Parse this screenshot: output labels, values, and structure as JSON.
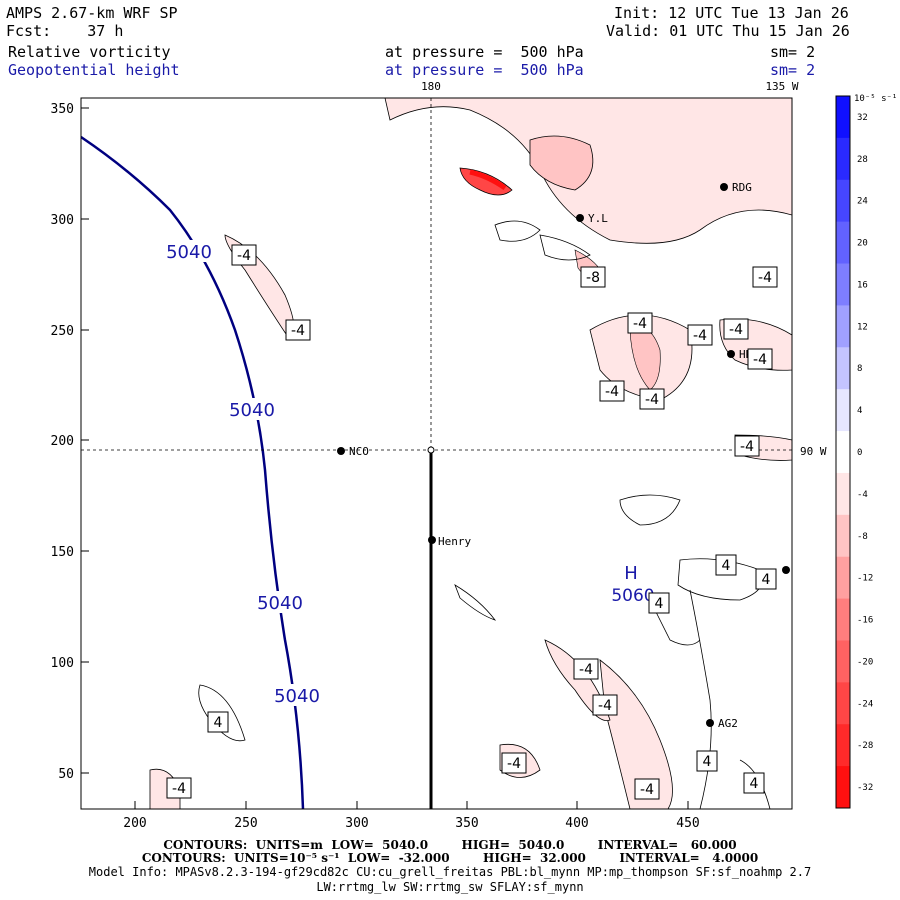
{
  "header": {
    "model_title": "AMPS 2.67-km WRF SP",
    "forecast": "Fcst:    37 h",
    "init": "Init: 12 UTC Tue 13 Jan 26",
    "valid": "Valid: 01 UTC Thu 15 Jan 26",
    "field1_name": "Relative vorticity",
    "field1_level": "at pressure =  500 hPa",
    "field1_sm": "sm= 2",
    "field2_name": "Geopotential height",
    "field2_level": "at pressure =  500 hPa",
    "field2_sm": "sm= 2"
  },
  "map_labels": {
    "meridian_180": "180",
    "meridian_135w": "135 W",
    "parallel_90w": "90 W",
    "stations": [
      "NCO",
      "Henry",
      "RDG",
      "HRC",
      "AG2",
      "Y.L"
    ],
    "high_letter": "H",
    "high_value": "5060"
  },
  "axes": {
    "x_ticks": [
      "200",
      "250",
      "300",
      "350",
      "400",
      "450"
    ],
    "y_ticks": [
      "350",
      "300",
      "250",
      "200",
      "150",
      "100",
      "50"
    ]
  },
  "colorbar": {
    "unit_label": "10⁻⁵ s⁻¹",
    "levels": [
      "32",
      "28",
      "24",
      "20",
      "16",
      "12",
      "8",
      "4",
      "0",
      "-4",
      "-8",
      "-12",
      "-16",
      "-20",
      "-24",
      "-28",
      "-32"
    ],
    "colors": [
      "#1010ff",
      "#2a2aff",
      "#4646ff",
      "#6262ff",
      "#7e7eff",
      "#a0a0ff",
      "#c4c4ff",
      "#e6e6ff",
      "#ffffff",
      "#ffe6e6",
      "#ffc4c4",
      "#ffa0a0",
      "#ff7e7e",
      "#ff6262",
      "#ff4646",
      "#ff2a2a",
      "#ff1010"
    ]
  },
  "contour_labels": {
    "height": [
      "5040",
      "5040",
      "5040",
      "5040"
    ],
    "vorticity": [
      "-4",
      "-4",
      "-4",
      "-4",
      "-4",
      "-4",
      "-4",
      "-4",
      "-4",
      "-4",
      "-4",
      "-8",
      "4",
      "4",
      "4",
      "4",
      "4",
      "4",
      "-4",
      "-4"
    ]
  },
  "footer": {
    "line1": "CONTOURS:  UNITS=m  LOW=  5040.0        HIGH=  5040.0        INTERVAL=   60.000",
    "line2": "CONTOURS:  UNITS=10⁻⁵ s⁻¹  LOW=  -32.000        HIGH=  32.000        INTERVAL=   4.0000",
    "line3": "Model Info: MPASv8.2.3-194-gf29cd82c CU:cu_grell_freitas PBL:bl_mynn MP:mp_thompson SF:sf_noahmp 2.7",
    "line4": "LW:rrtmg_lw SW:rrtmg_sw SFLAY:sf_mynn"
  }
}
